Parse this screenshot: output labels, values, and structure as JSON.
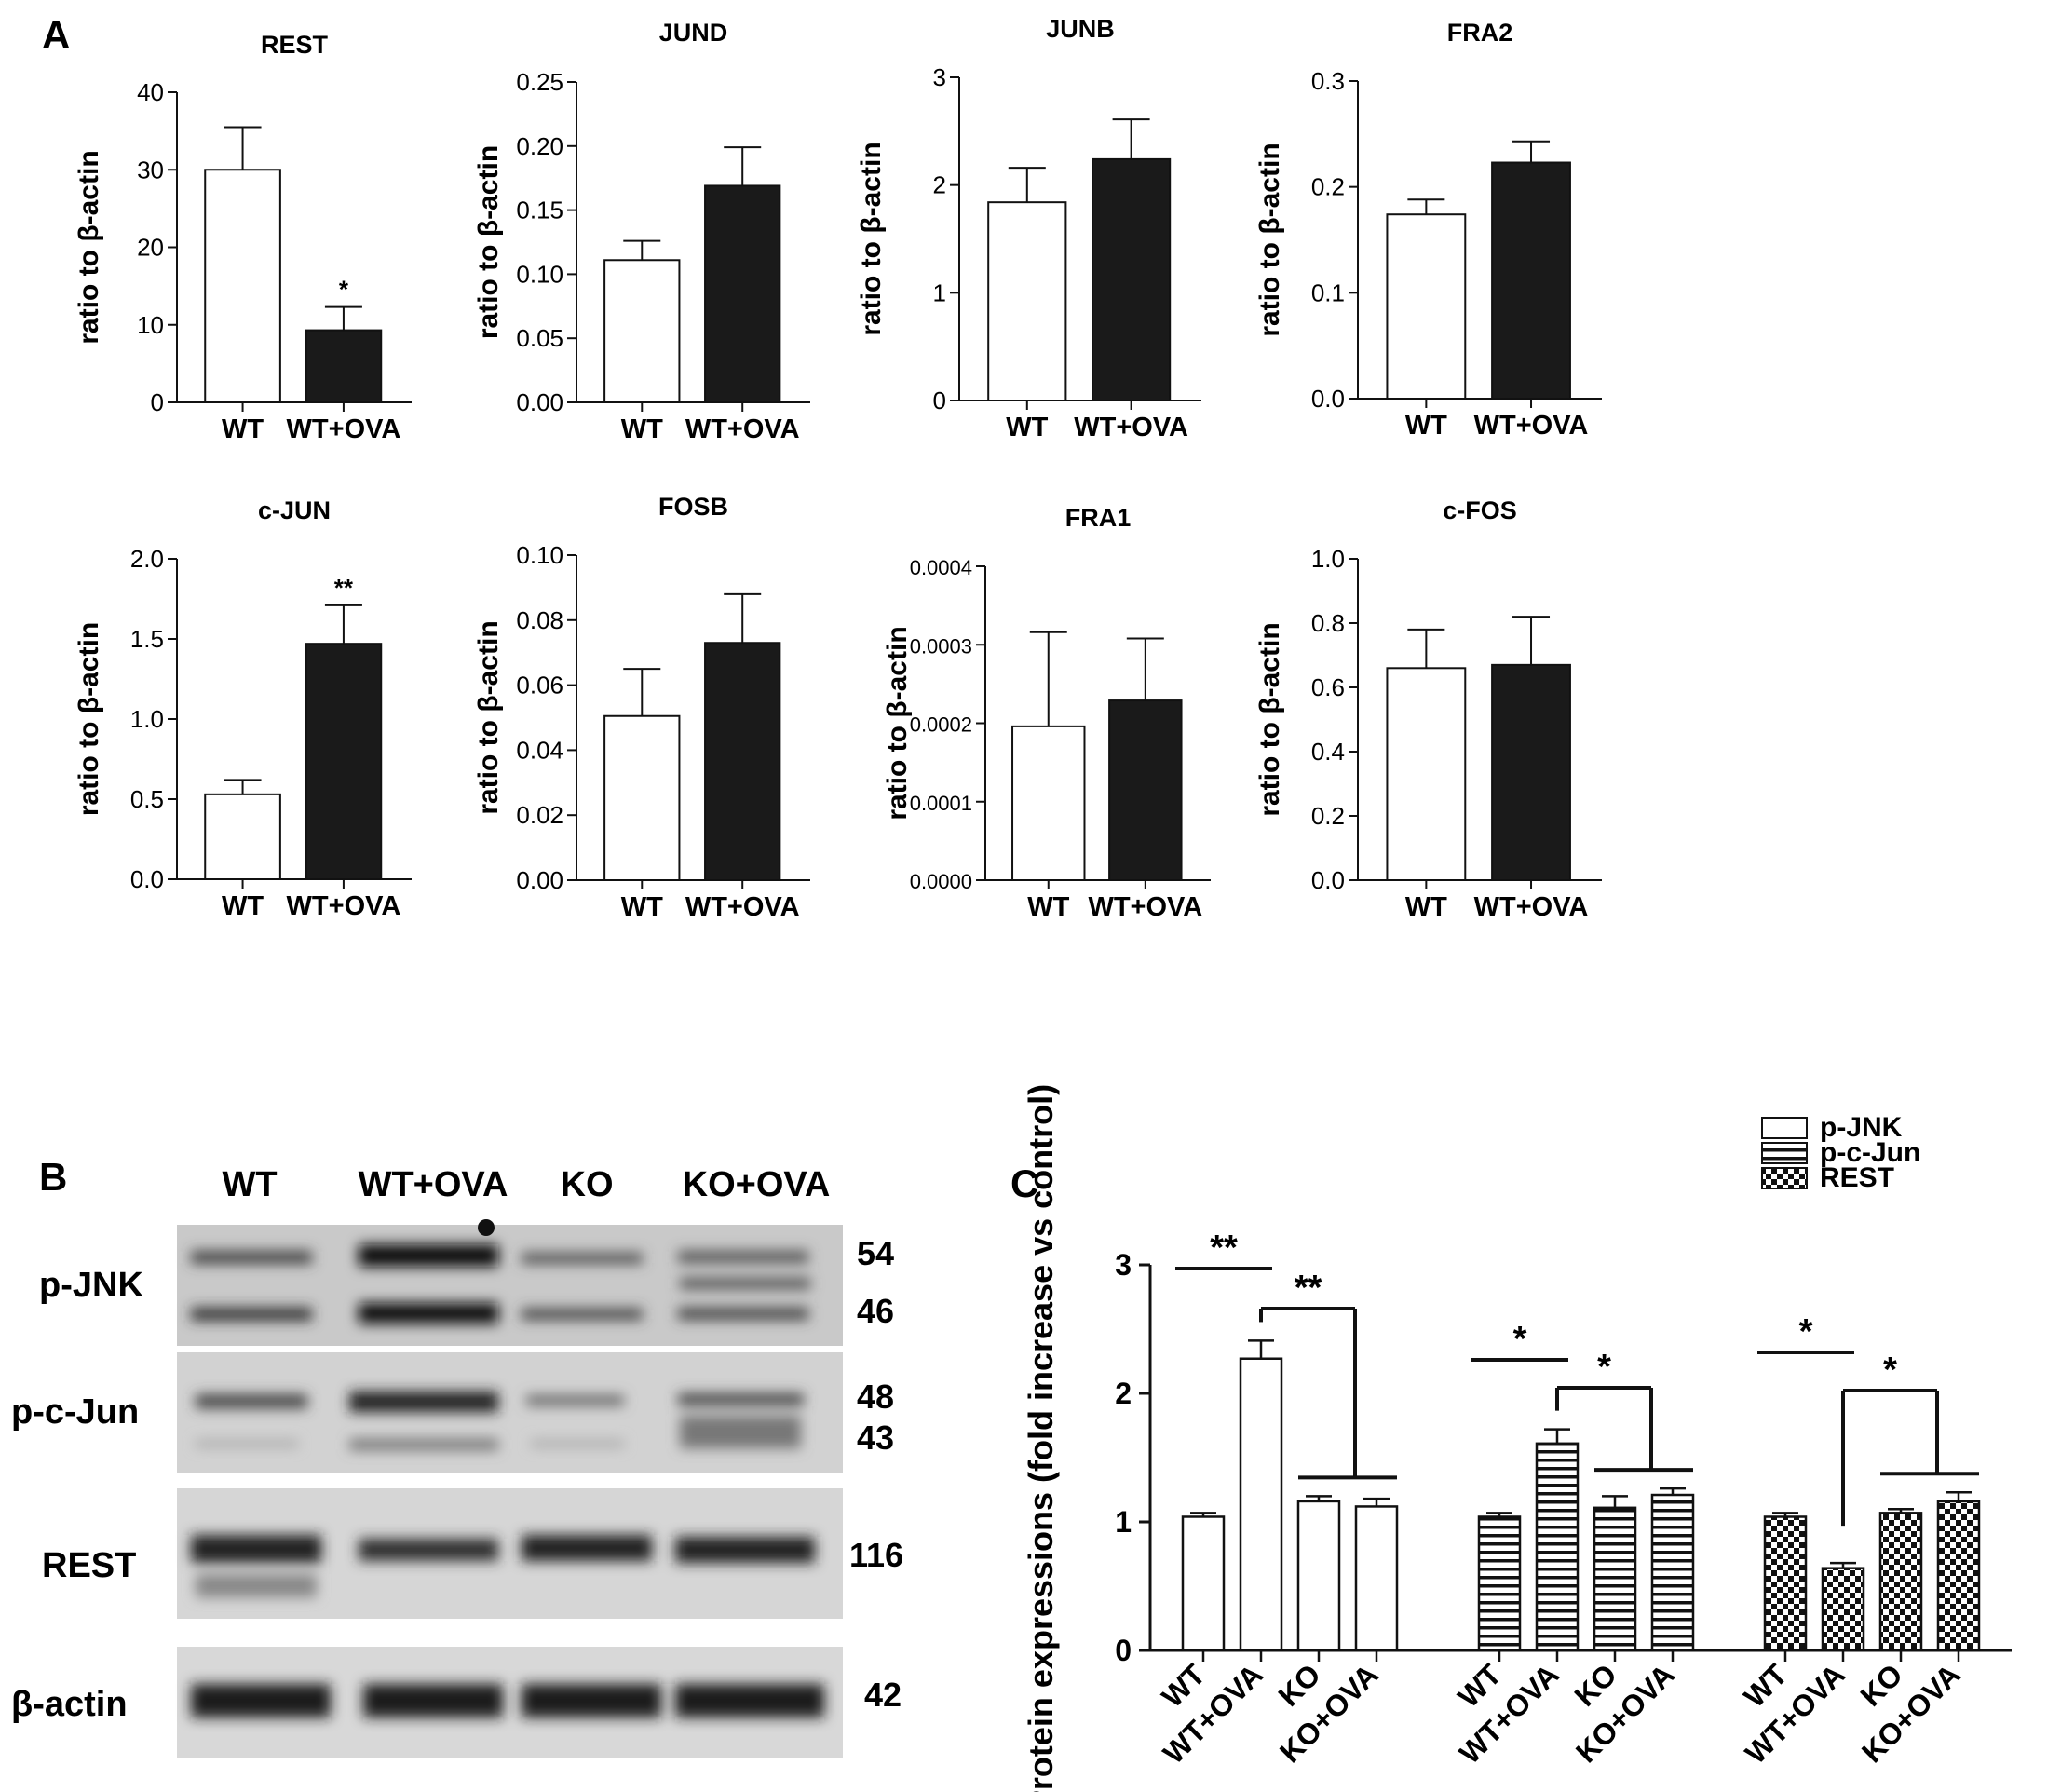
{
  "panel_labels": {
    "a": "A",
    "b": "B",
    "c": "C"
  },
  "colors": {
    "wt": "#ffffff",
    "ova": "#1a1a1a",
    "axis": "#111111"
  },
  "chart_data": [
    {
      "type": "bar",
      "panel": "A",
      "title": "REST",
      "ylabel": "ratio to β-actin",
      "categories": [
        "WT",
        "WT+OVA"
      ],
      "values": [
        30,
        9.3
      ],
      "errors": [
        5.5,
        3
      ],
      "ylim": [
        0,
        40
      ],
      "yticks": [
        "0",
        "10",
        "20",
        "30",
        "40"
      ],
      "sig": [
        "",
        "*"
      ]
    },
    {
      "type": "bar",
      "panel": "A",
      "title": "JUND",
      "ylabel": "ratio to β-actin",
      "categories": [
        "WT",
        "WT+OVA"
      ],
      "values": [
        0.111,
        0.169
      ],
      "errors": [
        0.015,
        0.03
      ],
      "ylim": [
        0,
        0.25
      ],
      "yticks": [
        "0.00",
        "0.05",
        "0.10",
        "0.15",
        "0.20",
        "0.25"
      ],
      "sig": [
        "",
        ""
      ]
    },
    {
      "type": "bar",
      "panel": "A",
      "title": "JUNB",
      "ylabel": "ratio to β-actin",
      "categories": [
        "WT",
        "WT+OVA"
      ],
      "values": [
        1.84,
        2.24
      ],
      "errors": [
        0.32,
        0.37
      ],
      "ylim": [
        0,
        3
      ],
      "yticks": [
        "0",
        "1",
        "2",
        "3"
      ],
      "sig": [
        "",
        ""
      ]
    },
    {
      "type": "bar",
      "panel": "A",
      "title": "FRA2",
      "ylabel": "ratio to β-actin",
      "categories": [
        "WT",
        "WT+OVA"
      ],
      "values": [
        0.174,
        0.223
      ],
      "errors": [
        0.014,
        0.02
      ],
      "ylim": [
        0,
        0.3
      ],
      "yticks": [
        "0.0",
        "0.1",
        "0.2",
        "0.3"
      ],
      "sig": [
        "",
        ""
      ]
    },
    {
      "type": "bar",
      "panel": "A",
      "title": "c-JUN",
      "ylabel": "ratio to β-actin",
      "categories": [
        "WT",
        "WT+OVA"
      ],
      "values": [
        0.53,
        1.47
      ],
      "errors": [
        0.09,
        0.24
      ],
      "ylim": [
        0,
        2.0
      ],
      "yticks": [
        "0.0",
        "0.5",
        "1.0",
        "1.5",
        "2.0"
      ],
      "sig": [
        "",
        "**"
      ]
    },
    {
      "type": "bar",
      "panel": "A",
      "title": "FOSB",
      "ylabel": "ratio to β-actin",
      "categories": [
        "WT",
        "WT+OVA"
      ],
      "values": [
        0.0505,
        0.073
      ],
      "errors": [
        0.0145,
        0.015
      ],
      "ylim": [
        0,
        0.1
      ],
      "yticks": [
        "0.00",
        "0.02",
        "0.04",
        "0.06",
        "0.08",
        "0.10"
      ],
      "sig": [
        "",
        ""
      ]
    },
    {
      "type": "bar",
      "panel": "A",
      "title": "FRA1",
      "ylabel": "ratio to β-actin",
      "categories": [
        "WT",
        "WT+OVA"
      ],
      "values": [
        0.000196,
        0.000229
      ],
      "errors": [
        0.00012,
        7.9e-05
      ],
      "ylim": [
        0,
        0.0004
      ],
      "yticks": [
        "0.0000",
        "0.0001",
        "0.0002",
        "0.0003",
        "0.0004"
      ],
      "sig": [
        "",
        ""
      ]
    },
    {
      "type": "bar",
      "panel": "A",
      "title": "c-FOS",
      "ylabel": "ratio to β-actin",
      "categories": [
        "WT",
        "WT+OVA"
      ],
      "values": [
        0.66,
        0.67
      ],
      "errors": [
        0.12,
        0.15
      ],
      "ylim": [
        0,
        1.0
      ],
      "yticks": [
        "0.0",
        "0.2",
        "0.4",
        "0.6",
        "0.8",
        "1.0"
      ],
      "sig": [
        "",
        ""
      ]
    },
    {
      "type": "bar",
      "panel": "C",
      "ylabel": "Protein expressions (fold increase vs control)",
      "categories": [
        "WT",
        "WT+OVA",
        "KO",
        "KO+OVA"
      ],
      "ylim": [
        0,
        3
      ],
      "yticks": [
        "0",
        "1",
        "2",
        "3"
      ],
      "series": [
        {
          "name": "p-JNK",
          "pattern": "open",
          "values": [
            1.04,
            2.27,
            1.16,
            1.12
          ],
          "errors": [
            0.03,
            0.14,
            0.04,
            0.06
          ]
        },
        {
          "name": "p-c-Jun",
          "pattern": "striped",
          "values": [
            1.04,
            1.61,
            1.11,
            1.21
          ],
          "errors": [
            0.03,
            0.11,
            0.09,
            0.05
          ]
        },
        {
          "name": "REST",
          "pattern": "checkered",
          "values": [
            1.04,
            0.64,
            1.07,
            1.16
          ],
          "errors": [
            0.03,
            0.04,
            0.03,
            0.07
          ]
        }
      ],
      "sig_brackets": [
        {
          "series": "p-JNK",
          "labels": [
            "**",
            "**"
          ]
        },
        {
          "series": "p-c-Jun",
          "labels": [
            "*",
            "*"
          ]
        },
        {
          "series": "REST",
          "labels": [
            "*",
            "*"
          ]
        }
      ]
    }
  ],
  "blot": {
    "lanes": [
      "WT",
      "WT+OVA",
      "KO",
      "KO+OVA"
    ],
    "rows": [
      {
        "label": "p-JNK",
        "kda": [
          "54",
          "46"
        ]
      },
      {
        "label": "p-c-Jun",
        "kda": [
          "48",
          "43"
        ]
      },
      {
        "label": "REST",
        "kda": [
          "116"
        ]
      },
      {
        "label": "β-actin",
        "kda": [
          "42"
        ]
      }
    ]
  }
}
